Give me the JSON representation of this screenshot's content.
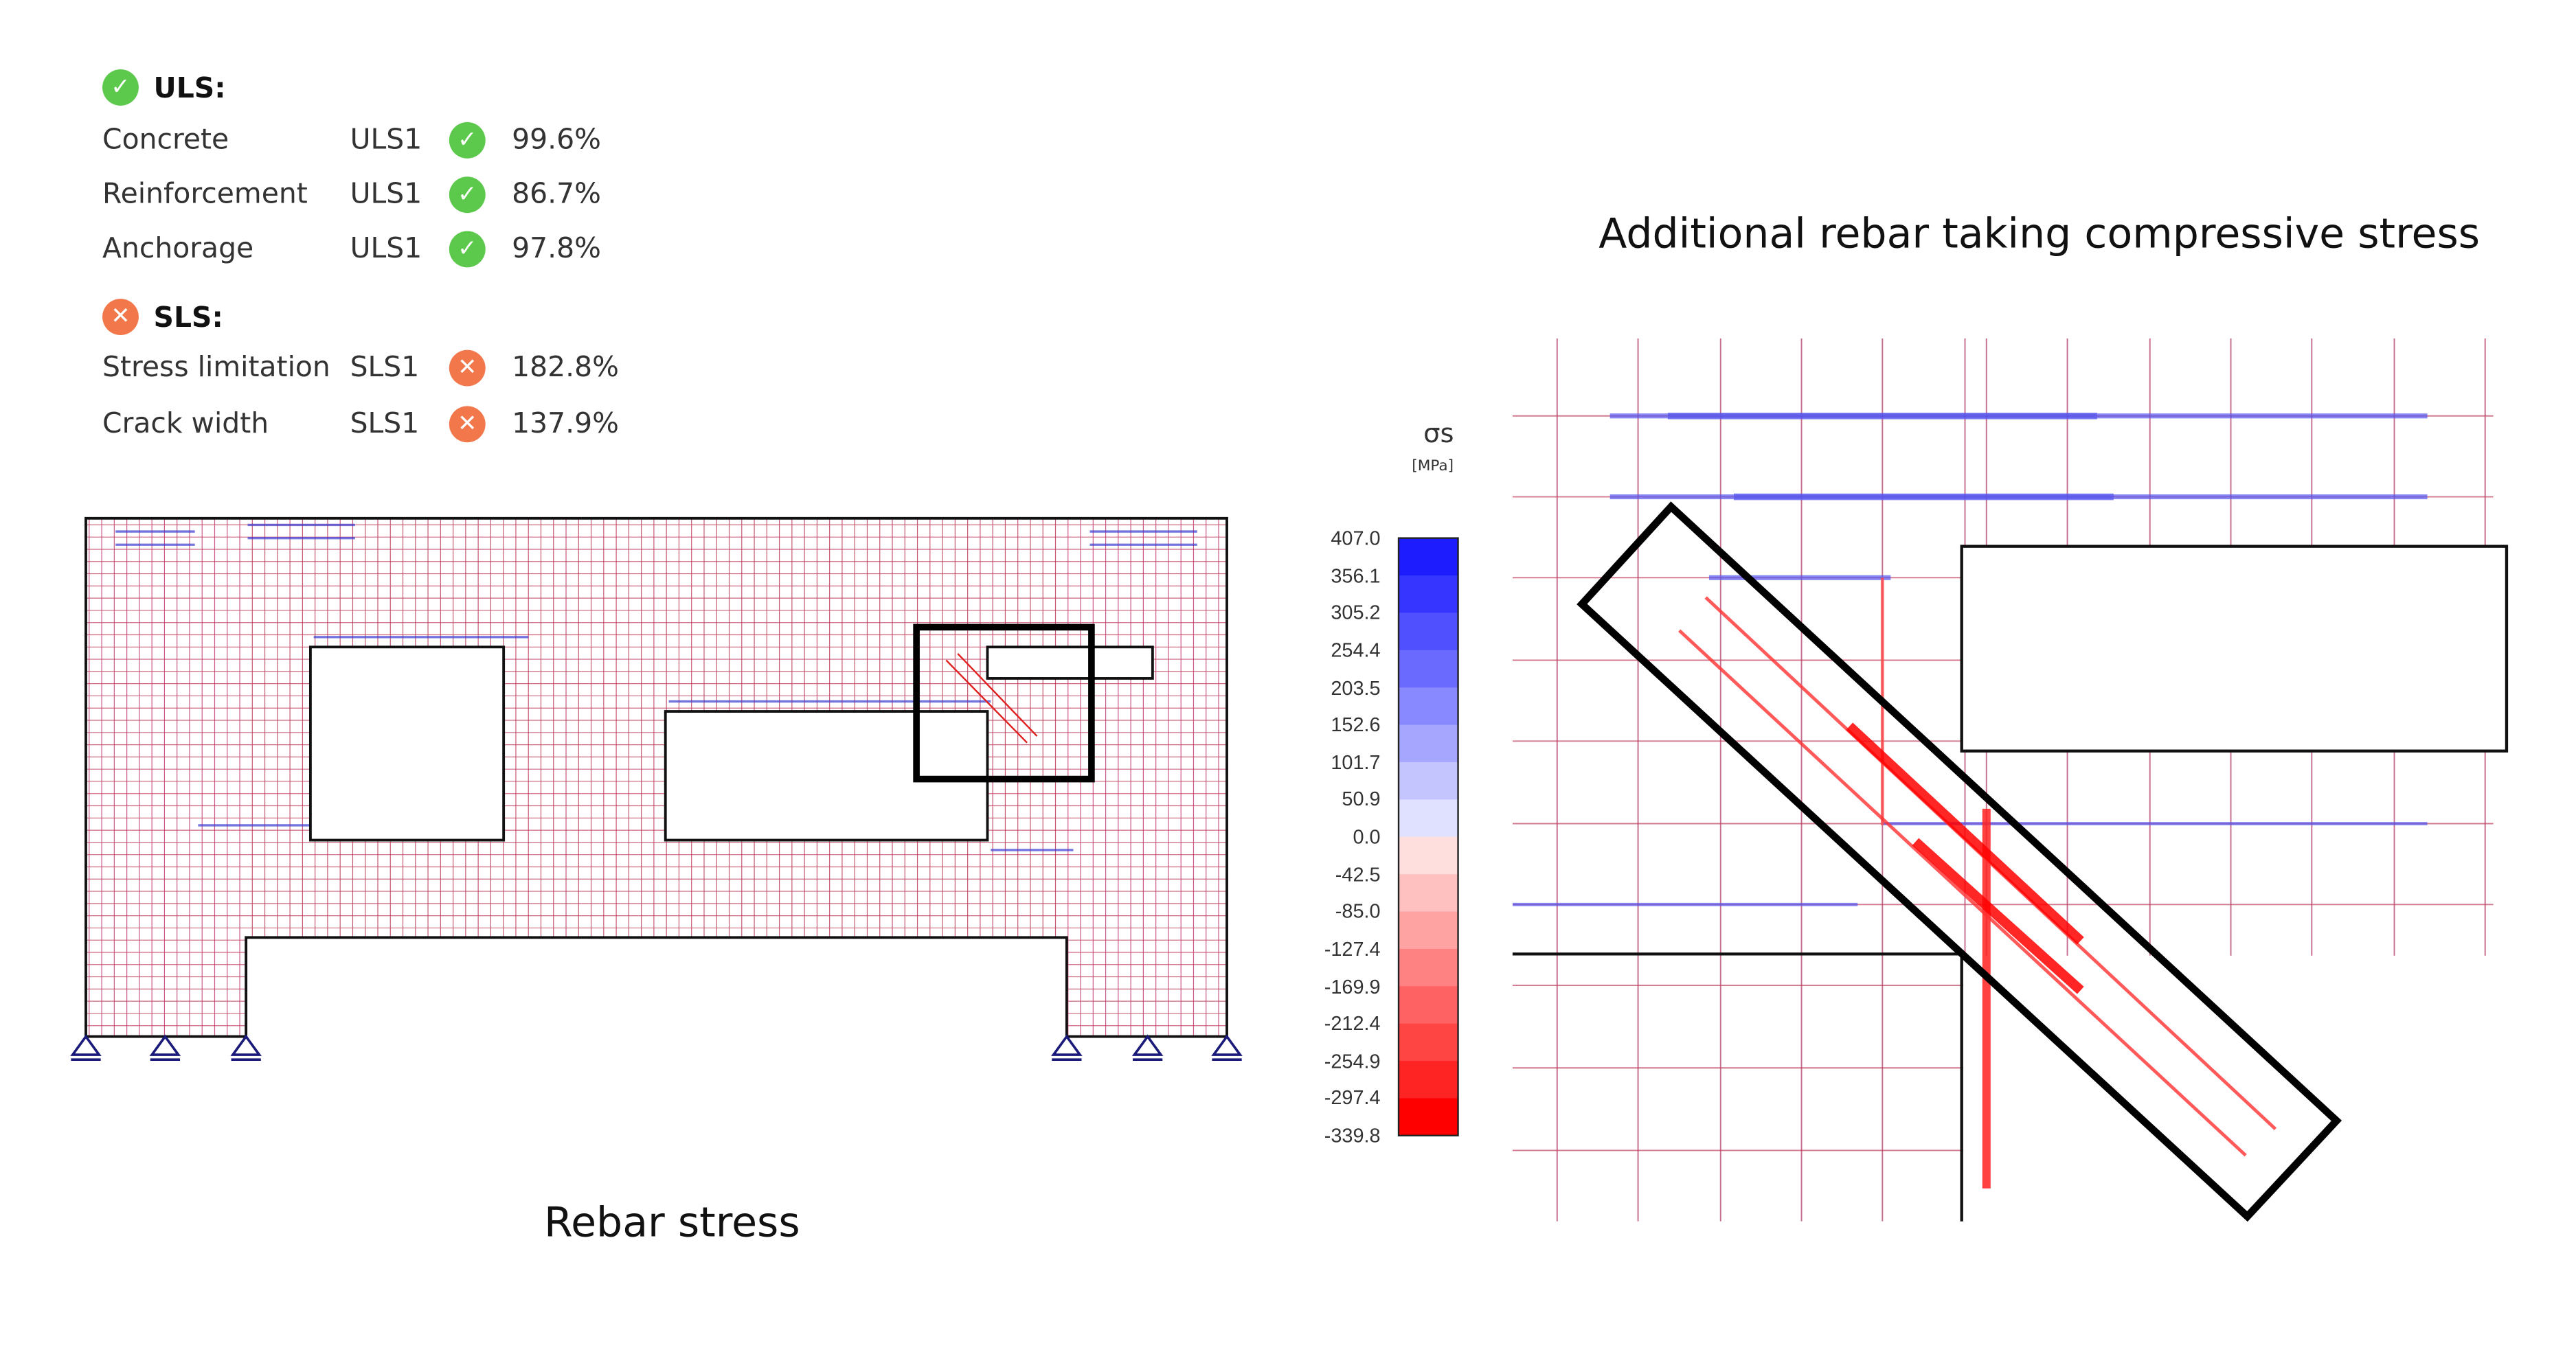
{
  "results": {
    "uls": {
      "label": "ULS:",
      "status": "pass",
      "rows": [
        {
          "name": "Concrete",
          "combo": "ULS1",
          "status": "pass",
          "value": "99.6%"
        },
        {
          "name": "Reinforcement",
          "combo": "ULS1",
          "status": "pass",
          "value": "86.7%"
        },
        {
          "name": "Anchorage",
          "combo": "ULS1",
          "status": "pass",
          "value": "97.8%"
        }
      ]
    },
    "sls": {
      "label": "SLS:",
      "status": "fail",
      "rows": [
        {
          "name": "Stress limitation",
          "combo": "SLS1",
          "status": "fail",
          "value": "182.8%"
        },
        {
          "name": "Crack width",
          "combo": "SLS1",
          "status": "fail",
          "value": "137.9%"
        }
      ]
    }
  },
  "captions": {
    "left": "Rebar stress",
    "right": "Additional rebar taking compressive stress"
  },
  "legend": {
    "symbol": "σs",
    "unit": "[MPa]",
    "ticks": [
      "407.0",
      "356.1",
      "305.2",
      "254.4",
      "203.5",
      "152.6",
      "101.7",
      "50.9",
      "0.0",
      "-42.5",
      "-85.0",
      "-127.4",
      "-169.9",
      "-212.4",
      "-254.9",
      "-297.4",
      "-339.8"
    ],
    "colors": [
      "#1c1cff",
      "#3535ff",
      "#5050ff",
      "#6a6aff",
      "#8888ff",
      "#a6a6ff",
      "#c4c4ff",
      "#e0e0ff",
      "#ffdede",
      "#ffc0c0",
      "#ffa2a2",
      "#ff8282",
      "#ff6262",
      "#ff4444",
      "#ff2424",
      "#ff0000"
    ]
  },
  "colors": {
    "pass": "#5cc94c",
    "fail": "#f2784b",
    "tension": "#1c1cff",
    "compression": "#ff0000"
  }
}
